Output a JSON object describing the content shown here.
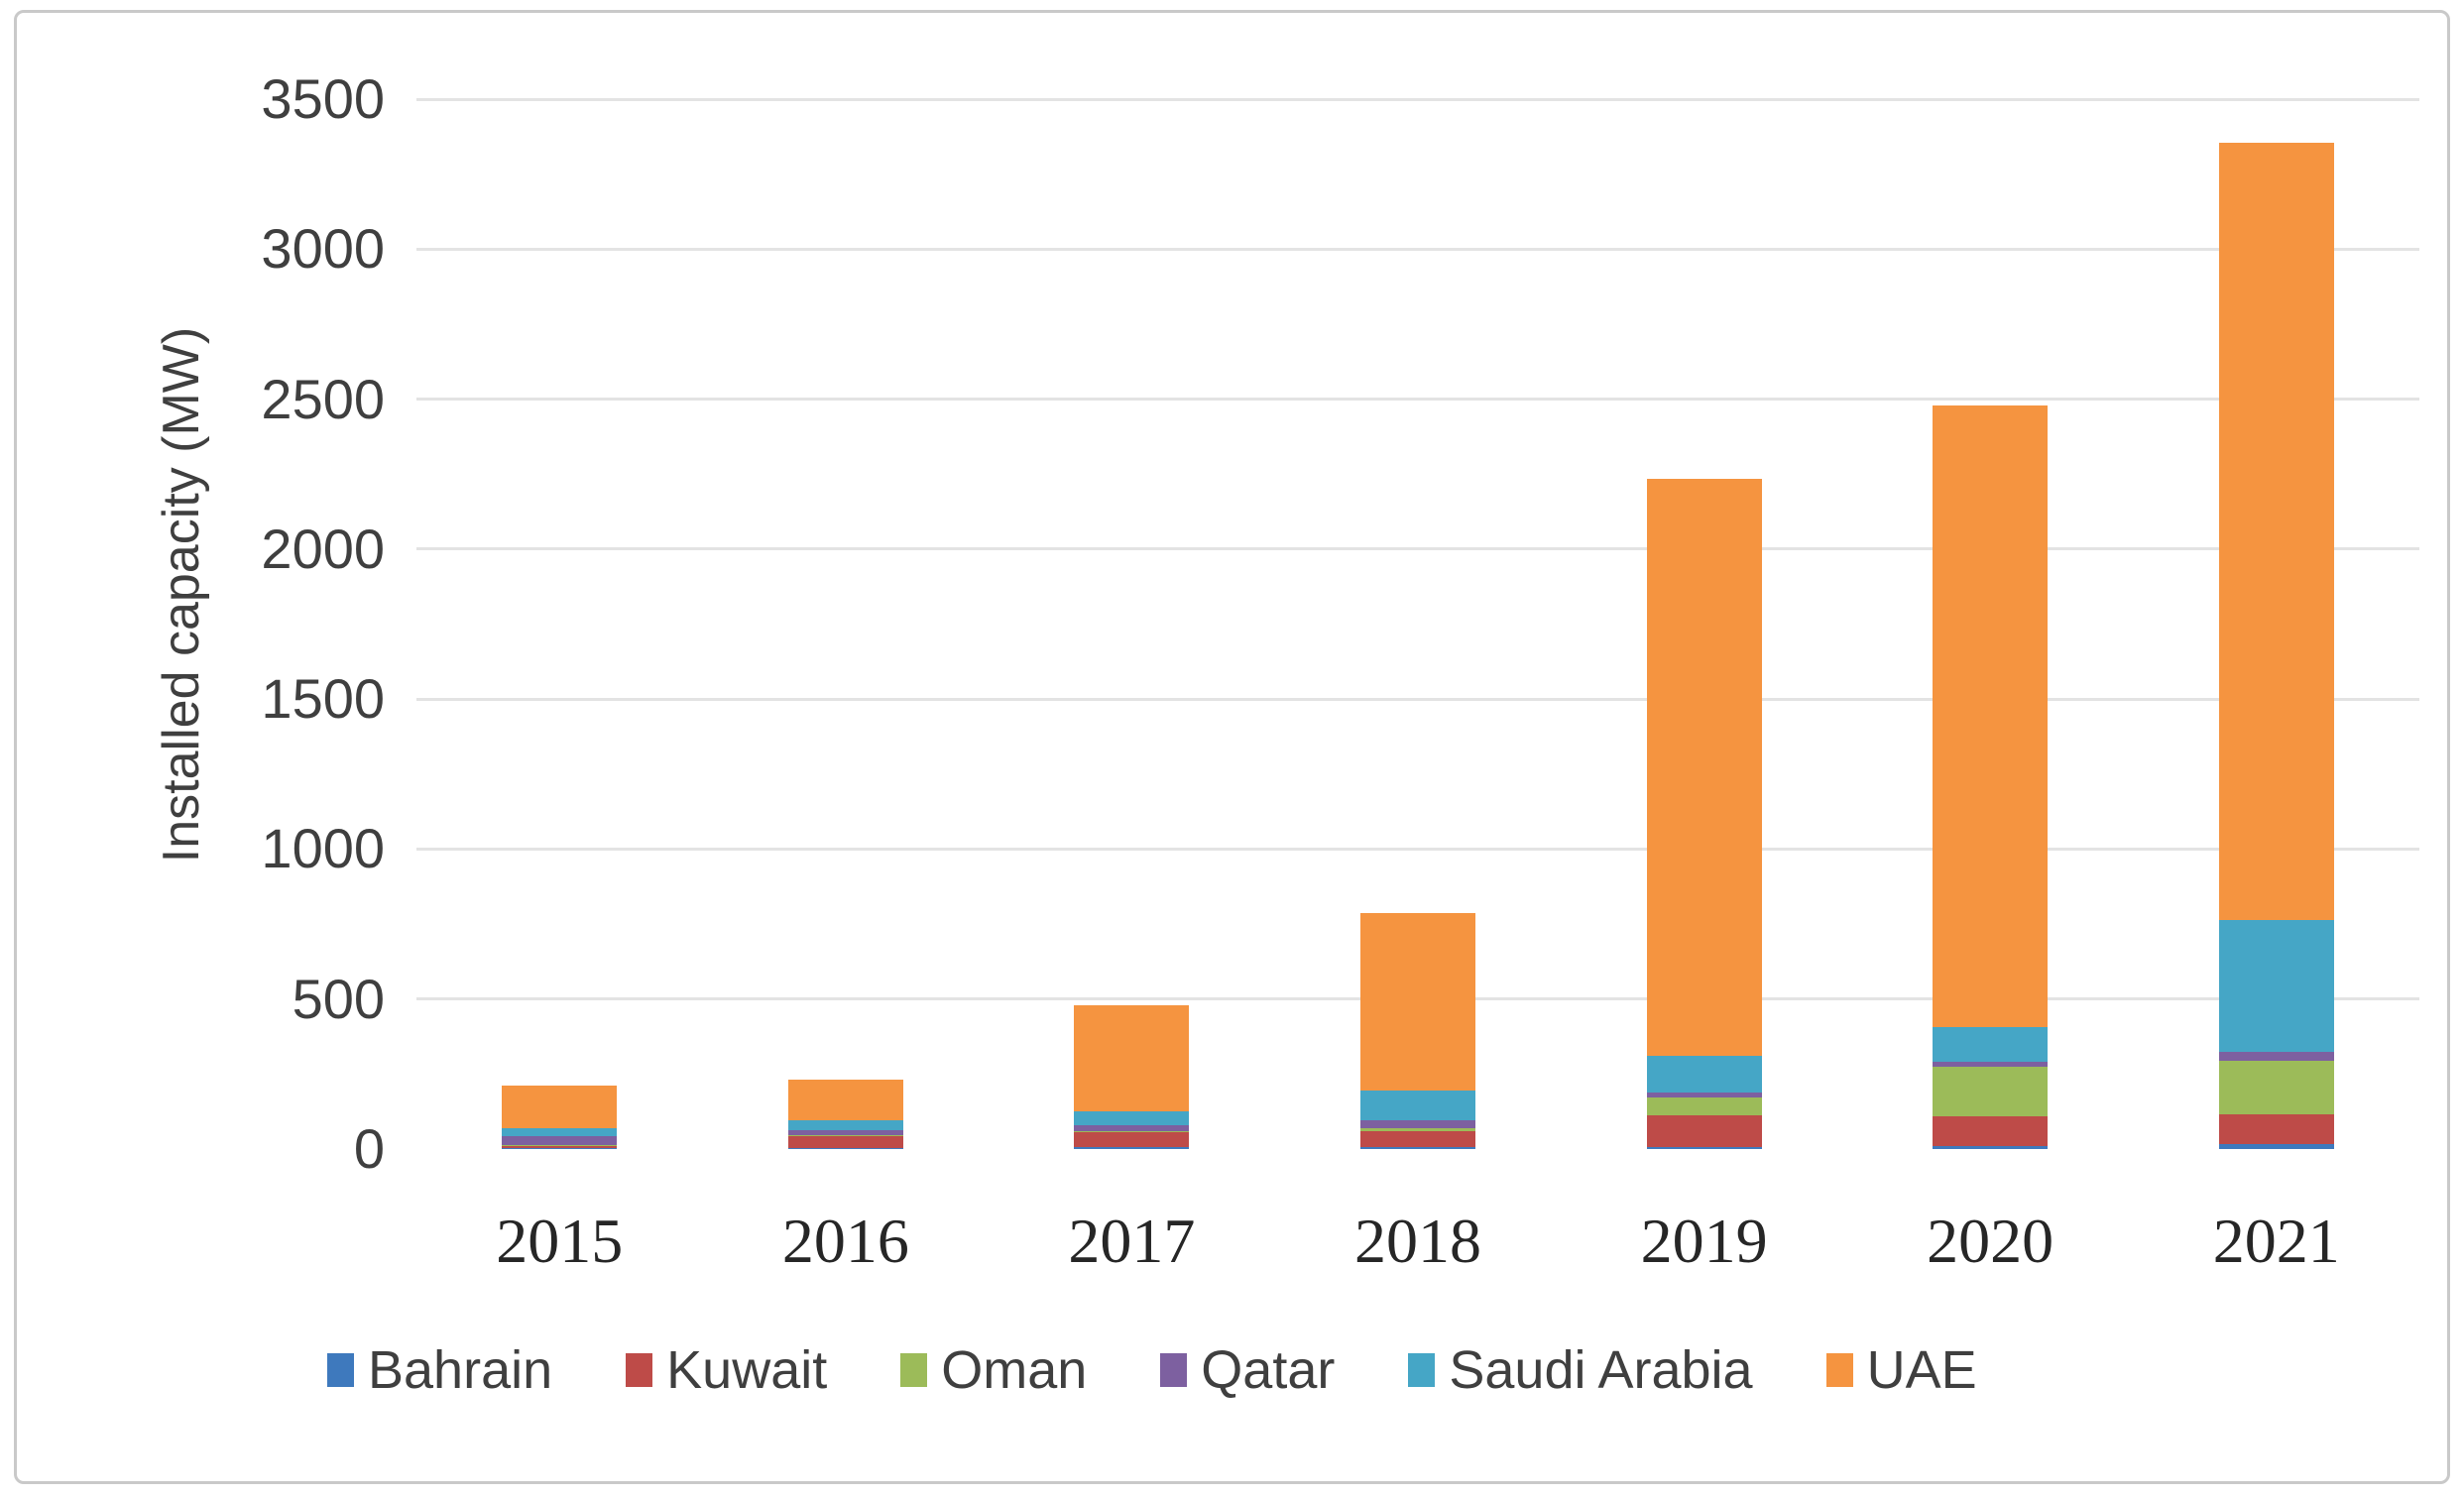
{
  "chart_data": {
    "type": "bar",
    "stacked": true,
    "title": "",
    "xlabel": "",
    "ylabel": "Installed capacity (MW)",
    "categories": [
      "2015",
      "2016",
      "2017",
      "2018",
      "2019",
      "2020",
      "2021"
    ],
    "series": [
      {
        "name": "Bahrain",
        "color": "#3e79bd",
        "values": [
          5,
          5,
          6,
          6,
          8,
          10,
          15
        ]
      },
      {
        "name": "Kuwait",
        "color": "#be4b48",
        "values": [
          5,
          40,
          50,
          52,
          105,
          100,
          100
        ]
      },
      {
        "name": "Oman",
        "color": "#9cbb59",
        "values": [
          2,
          2,
          3,
          10,
          60,
          165,
          180
        ]
      },
      {
        "name": "Qatar",
        "color": "#7d60a0",
        "values": [
          30,
          15,
          20,
          27,
          17,
          17,
          28
        ]
      },
      {
        "name": "Saudi Arabia",
        "color": "#45a6c6",
        "values": [
          28,
          33,
          46,
          100,
          120,
          115,
          440
        ]
      },
      {
        "name": "UAE",
        "color": "#f59440",
        "values": [
          140,
          135,
          355,
          590,
          1925,
          2073,
          2590
        ]
      }
    ],
    "totals": [
      210,
      230,
      480,
      785,
      2235,
      2480,
      3353
    ],
    "ylim": [
      0,
      3500
    ],
    "yticks": [
      0,
      500,
      1000,
      1500,
      2000,
      2500,
      3000,
      3500
    ],
    "ytick_interval": 500,
    "grid": true,
    "gridline_color": "#e3e3e3",
    "legend_position": "bottom",
    "legend_labels": [
      "Bahrain",
      "Kuwait",
      "Oman",
      "Qatar",
      "Saudi Arabia",
      "UAE"
    ]
  }
}
